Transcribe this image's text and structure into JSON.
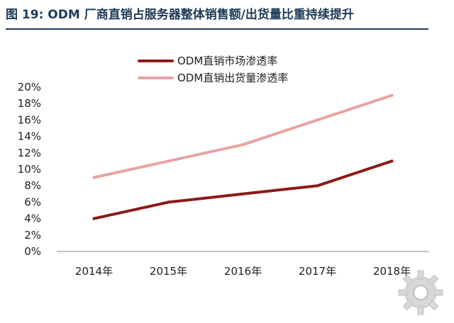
{
  "figure": {
    "title": "图 19: ODM 厂商直销占服务器整体销售额/出货量比重持续提升"
  },
  "chart_data": {
    "type": "line",
    "categories": [
      "2014年",
      "2015年",
      "2016年",
      "2017年",
      "2018年"
    ],
    "series": [
      {
        "name": "ODM直销市场渗透率",
        "color": "#8b1a1a",
        "values": [
          4,
          6,
          7,
          8,
          11
        ]
      },
      {
        "name": "ODM直销出货量渗透率",
        "color": "#e8a3a3",
        "values": [
          9,
          11,
          13,
          16,
          19
        ]
      }
    ],
    "ylim": [
      0,
      20
    ],
    "yticks": [
      "0%",
      "2%",
      "4%",
      "6%",
      "8%",
      "10%",
      "12%",
      "14%",
      "16%",
      "18%",
      "20%"
    ],
    "grid": false,
    "legend": "top"
  }
}
